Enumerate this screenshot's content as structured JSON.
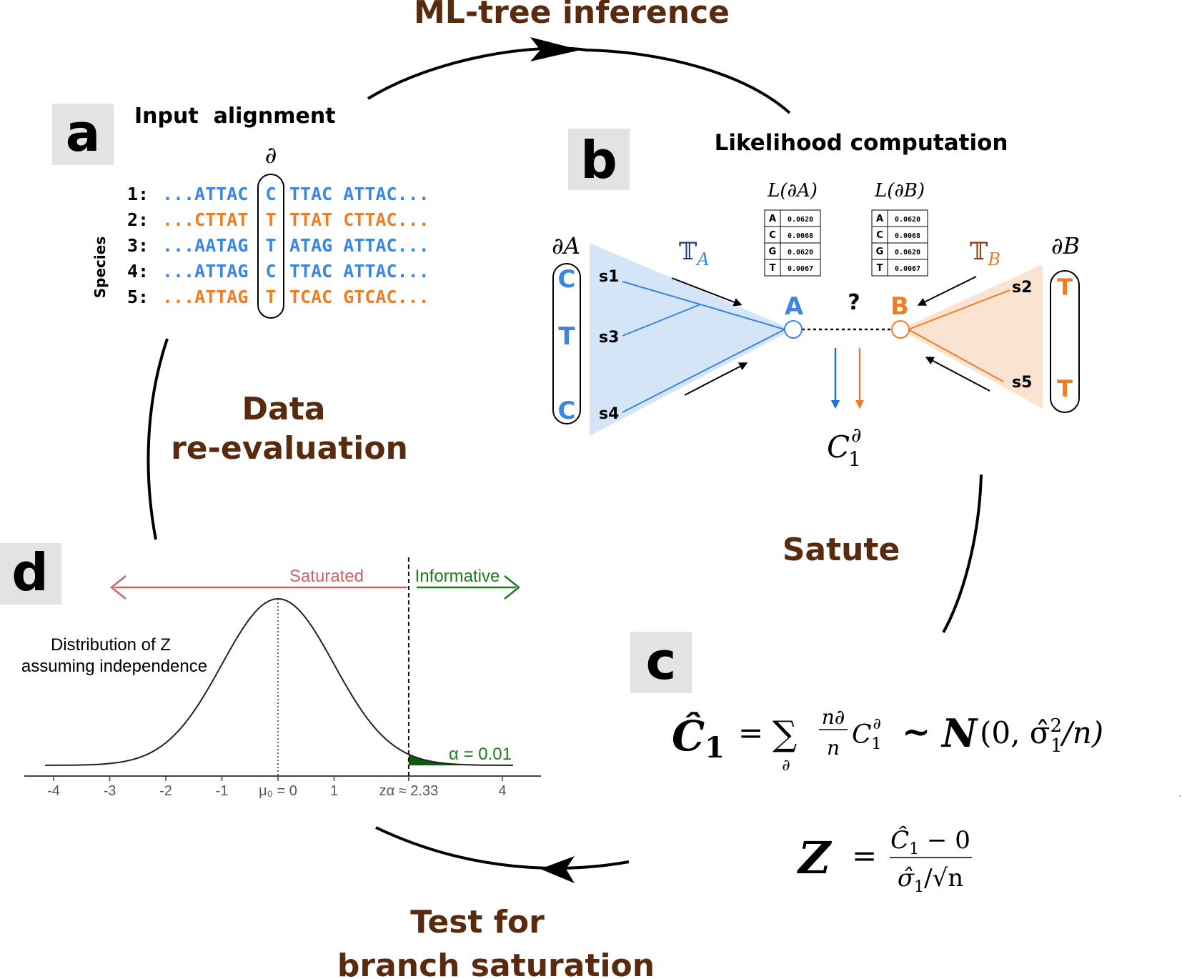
{
  "cycle": {
    "top": "ML-tree inference",
    "right": "Satute",
    "bottom_line1": "Test for",
    "bottom_line2": "branch saturation",
    "left_line1": "Data",
    "left_line2": "re-evaluation"
  },
  "panel_a": {
    "letter": "a",
    "title": "Input  alignment",
    "site_symbol": "∂",
    "species_label": "Species",
    "rows": [
      {
        "id": "1:",
        "left": "...ATTAC",
        "site": "C",
        "right": "TTAC ATTAC...",
        "color": "#3b86e0"
      },
      {
        "id": "2:",
        "left": "...CTTAT",
        "site": "T",
        "right": "TTAT CTTAC...",
        "color": "#f07c24"
      },
      {
        "id": "3:",
        "left": "...AATAG",
        "site": "T",
        "right": "ATAG ATTAC...",
        "color": "#3b86e0"
      },
      {
        "id": "4:",
        "left": "...ATTAG",
        "site": "C",
        "right": "TTAC ATTAC...",
        "color": "#3b86e0"
      },
      {
        "id": "5:",
        "left": "...ATTAG",
        "site": "T",
        "right": "TCAC GTCAC...",
        "color": "#f07c24"
      }
    ]
  },
  "panel_b": {
    "letter": "b",
    "title": "Likelihood computation",
    "partial_A_label": "∂A",
    "partial_B_label": "∂B",
    "subtree_A": "𝕋",
    "subtree_A_sub": "A",
    "subtree_B": "𝕋",
    "subtree_B_sub": "B",
    "node_A": "A",
    "node_B": "B",
    "question": "?",
    "left_states": [
      "C",
      "T",
      "C"
    ],
    "right_states": [
      "T",
      "T"
    ],
    "left_leaves": [
      "s1",
      "s3",
      "s4"
    ],
    "right_leaves": [
      "s2",
      "s5"
    ],
    "likelihood_A_label": "L(∂A)",
    "likelihood_B_label": "L(∂B)",
    "likelihood_A": [
      [
        "A",
        "0.0620"
      ],
      [
        "C",
        "0.0068"
      ],
      [
        "G",
        "0.0620"
      ],
      [
        "T",
        "0.0067"
      ]
    ],
    "likelihood_B": [
      [
        "A",
        "0.0620"
      ],
      [
        "C",
        "0.0068"
      ],
      [
        "G",
        "0.0620"
      ],
      [
        "T",
        "0.0067"
      ]
    ],
    "coherence_label": "C",
    "coherence_sub": "1",
    "coherence_sup": "∂",
    "colors": {
      "blue": "#3b86e0",
      "orange": "#f07c24",
      "blue_fill": "#d5e5f8",
      "orange_fill": "#fbe3d1"
    }
  },
  "panel_c": {
    "letter": "c",
    "eq1_lhs": "Ĉ",
    "eq1_lhs_sub": "1",
    "eq1_eq": "=",
    "eq1_sum": "∑",
    "eq1_sum_sub": "∂",
    "eq1_frac_num": "n∂",
    "eq1_frac_den": "n",
    "eq1_c": "C",
    "eq1_c_sub": "1",
    "eq1_c_sup": "∂",
    "eq1_tilde": "~",
    "eq1_N": "N",
    "eq1_args": "(0, σ̂",
    "eq1_args_sup": "2",
    "eq1_args_sub": "1",
    "eq1_args_end": "/n)",
    "eq2_lhs": "Z",
    "eq2_eq": "=",
    "eq2_num": "Ĉ",
    "eq2_num_sub": "1",
    "eq2_num_end": " − 0",
    "eq2_den": "σ̂",
    "eq2_den_sub": "1",
    "eq2_den_end": "/√n"
  },
  "panel_d": {
    "letter": "d",
    "saturated": "Saturated",
    "informative": "Informative",
    "distribution_line1": "Distribution of Z",
    "distribution_line2": "assuming independence",
    "alpha_label": "α = 0.01",
    "ticks": [
      "-4",
      "-3",
      "-2",
      "-1",
      "μ₀ = 0",
      "1",
      "zα ≈ 2.33",
      "4"
    ],
    "tick_values": [
      -4,
      -3,
      -2,
      -1,
      0,
      1,
      2.33,
      4
    ],
    "critical_value": 2.33,
    "colors": {
      "saturated": "#c96464",
      "informative": "#1f7a1f",
      "tail": "#0f5a0f"
    }
  }
}
